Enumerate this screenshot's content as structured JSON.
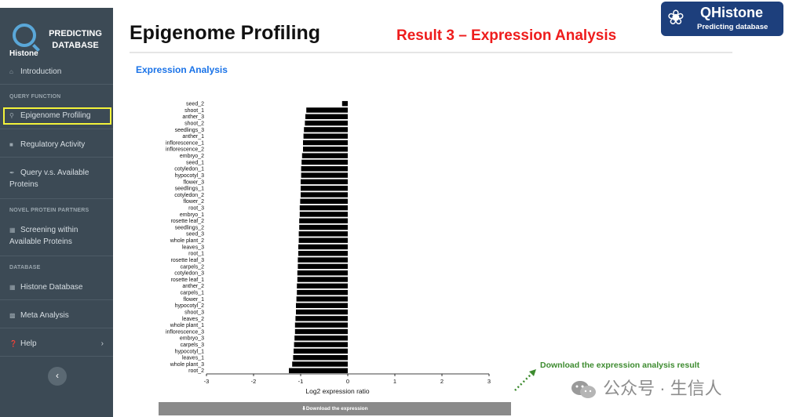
{
  "sidebar": {
    "logo_histone": "Histone",
    "logo_title_1": "PREDICTING",
    "logo_title_2": "DATABASE",
    "introduction": "Introduction",
    "section_query": "QUERY FUNCTION",
    "epigenome_profiling": "Epigenome Profiling",
    "regulatory_activity": "Regulatory Activity",
    "query_vs_line1": "Query v.s. Available",
    "query_vs_line2": "Proteins",
    "section_novel": "NOVEL PROTEIN PARTNERS",
    "screening_line1": "Screening within",
    "screening_line2": "Available Proteins",
    "section_database": "DATABASE",
    "histone_database": "Histone Database",
    "meta_analysis": "Meta Analysis",
    "help": "Help"
  },
  "header": {
    "page_title": "Epigenome Profiling",
    "result_title": "Result 3 – Expression Analysis",
    "brand_name": "QHistone",
    "brand_sub": "Predicting database"
  },
  "main": {
    "subheading": "Expression Analysis",
    "download_button": "Download the expression",
    "note": "Download the expression analysis result"
  },
  "watermark": {
    "text": "公众号 · 生信人"
  },
  "chart_data": {
    "type": "bar",
    "orientation": "horizontal",
    "xlabel": "Log2 expression ratio",
    "xlim": [
      -3,
      3
    ],
    "xticks": [
      -3,
      -2,
      -1,
      0,
      1,
      2,
      3
    ],
    "bar_color": "#000000",
    "categories": [
      "seed_2",
      "shoot_1",
      "anther_3",
      "shoot_2",
      "seedlings_3",
      "anther_1",
      "inflorescence_1",
      "inflorescence_2",
      "embryo_2",
      "seed_1",
      "cotyledon_1",
      "hypocotyl_3",
      "flower_3",
      "seedlings_1",
      "cotyledon_2",
      "flower_2",
      "root_3",
      "embryo_1",
      "rosette leaf_2",
      "seedlings_2",
      "seed_3",
      "whole plant_2",
      "leaves_3",
      "root_1",
      "rosette leaf_3",
      "carpels_2",
      "cotyledon_3",
      "rosette leaf_1",
      "anther_2",
      "carpels_1",
      "flower_1",
      "hypocotyl_2",
      "shoot_3",
      "leaves_2",
      "whole plant_1",
      "inflorescence_3",
      "embryo_3",
      "carpels_3",
      "hypocotyl_1",
      "leaves_1",
      "whole plant_3",
      "root_2"
    ],
    "values": [
      -0.12,
      -0.88,
      -0.9,
      -0.91,
      -0.93,
      -0.94,
      -0.95,
      -0.95,
      -0.97,
      -0.98,
      -0.99,
      -0.99,
      -1.0,
      -1.0,
      -1.0,
      -1.01,
      -1.02,
      -1.02,
      -1.03,
      -1.03,
      -1.04,
      -1.04,
      -1.05,
      -1.05,
      -1.06,
      -1.06,
      -1.07,
      -1.07,
      -1.08,
      -1.08,
      -1.09,
      -1.1,
      -1.1,
      -1.11,
      -1.12,
      -1.12,
      -1.13,
      -1.14,
      -1.15,
      -1.16,
      -1.18,
      -1.25
    ]
  }
}
